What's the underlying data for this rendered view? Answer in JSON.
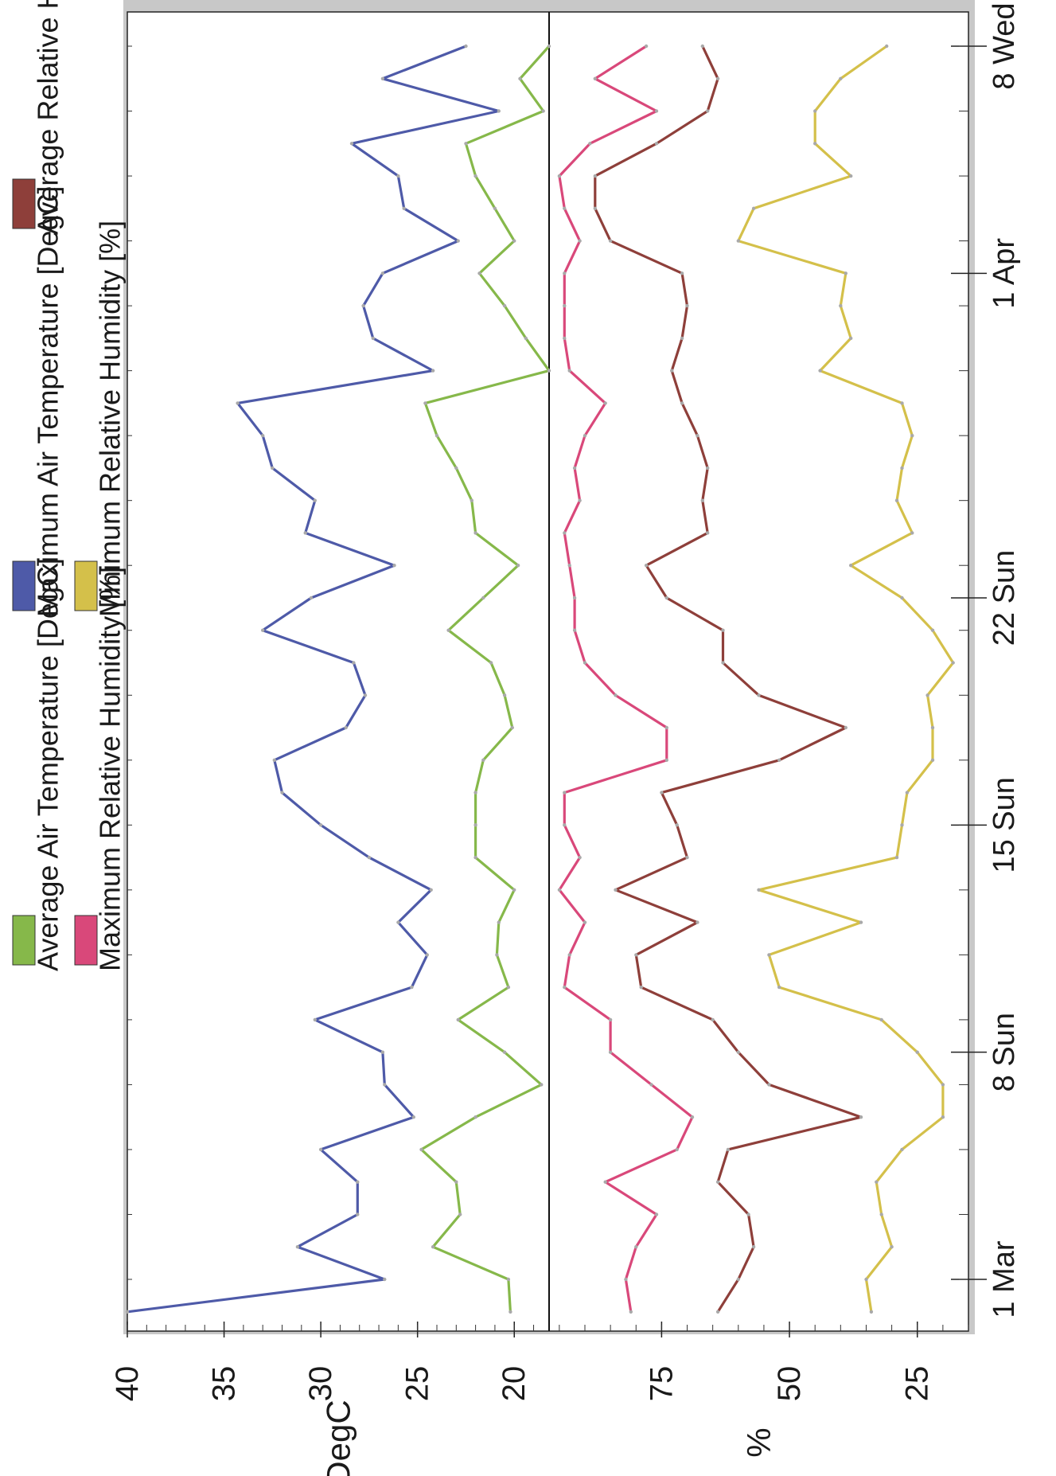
{
  "chart_data": {
    "type": "line",
    "orientation": "rotated-90",
    "legend": {
      "items": [
        {
          "label": "Average Air Temperature [DegC]",
          "color": "#86b84a"
        },
        {
          "label": "Maximum Air Temperature [DegC]",
          "color": "#4e5aa8"
        },
        {
          "label": "Average Relative Humidity [%]",
          "color": "#8e3f3a"
        },
        {
          "label": "Maximum Relative Humidity [%]",
          "color": "#d9487a"
        },
        {
          "label": "Minimum Relative Humidity [%]",
          "color": "#d4c04a"
        }
      ]
    },
    "x_axis": {
      "type": "date",
      "range": [
        "2015-02-27",
        "2015-04-09"
      ],
      "major_ticks": [
        {
          "date": "2015-03-01",
          "label": "1 Mar"
        },
        {
          "date": "2015-03-08",
          "label": "8 Sun"
        },
        {
          "date": "2015-03-15",
          "label": "15 Sun"
        },
        {
          "date": "2015-03-22",
          "label": "22 Sun"
        },
        {
          "date": "2015-04-01",
          "label": "1 Apr"
        },
        {
          "date": "2015-04-08",
          "label": "8 Wed"
        }
      ]
    },
    "panels": [
      {
        "name": "temperature",
        "ylabel": "DegC",
        "ylim": [
          18.2,
          40
        ],
        "ticks": [
          "40",
          "35",
          "30",
          "25",
          "20"
        ],
        "tick_values": [
          40,
          35,
          30,
          25,
          20
        ],
        "series": [
          {
            "name": "Maximum Air Temperature [DegC]",
            "color": "#4e5aa8",
            "x": [
              "2015-02-28",
              "2015-03-01",
              "2015-03-02",
              "2015-03-03",
              "2015-03-04",
              "2015-03-05",
              "2015-03-06",
              "2015-03-07",
              "2015-03-08",
              "2015-03-09",
              "2015-03-10",
              "2015-03-11",
              "2015-03-12",
              "2015-03-13",
              "2015-03-14",
              "2015-03-15",
              "2015-03-16",
              "2015-03-17",
              "2015-03-18",
              "2015-03-19",
              "2015-03-20",
              "2015-03-21",
              "2015-03-22",
              "2015-03-23",
              "2015-03-24",
              "2015-03-25",
              "2015-03-26",
              "2015-03-27",
              "2015-03-28",
              "2015-03-29",
              "2015-03-30",
              "2015-03-31",
              "2015-04-01",
              "2015-04-02",
              "2015-04-03",
              "2015-04-04",
              "2015-04-05",
              "2015-04-06",
              "2015-04-07",
              "2015-04-08"
            ],
            "y": [
              40,
              26.7,
              31.2,
              28.1,
              28.1,
              30.0,
              25.2,
              26.7,
              26.8,
              30.3,
              25.3,
              24.5,
              26.0,
              24.3,
              27.5,
              30.0,
              32.0,
              32.4,
              28.7,
              27.7,
              28.3,
              33.0,
              30.5,
              26.2,
              30.8,
              30.3,
              32.5,
              33.0,
              34.3,
              24.2,
              27.3,
              27.8,
              26.8,
              22.9,
              25.7,
              26.0,
              28.4,
              20.8,
              26.8,
              22.5
            ]
          },
          {
            "name": "Average Air Temperature [DegC]",
            "color": "#86b84a",
            "x": [
              "2015-02-28",
              "2015-03-01",
              "2015-03-02",
              "2015-03-03",
              "2015-03-04",
              "2015-03-05",
              "2015-03-06",
              "2015-03-07",
              "2015-03-08",
              "2015-03-09",
              "2015-03-10",
              "2015-03-11",
              "2015-03-12",
              "2015-03-13",
              "2015-03-14",
              "2015-03-15",
              "2015-03-16",
              "2015-03-17",
              "2015-03-18",
              "2015-03-19",
              "2015-03-20",
              "2015-03-21",
              "2015-03-22",
              "2015-03-23",
              "2015-03-24",
              "2015-03-25",
              "2015-03-26",
              "2015-03-27",
              "2015-03-28",
              "2015-03-29",
              "2015-03-30",
              "2015-03-31",
              "2015-04-01",
              "2015-04-02",
              "2015-04-03",
              "2015-04-04",
              "2015-04-05",
              "2015-04-06",
              "2015-04-07",
              "2015-04-08"
            ],
            "y": [
              20.2,
              20.3,
              24.2,
              22.8,
              23.0,
              24.8,
              22.0,
              18.6,
              20.5,
              22.9,
              20.3,
              20.9,
              20.8,
              20.0,
              22.0,
              22.0,
              22.0,
              21.6,
              20.1,
              20.5,
              21.2,
              23.4,
              21.6,
              19.8,
              22.0,
              22.2,
              23.0,
              24.0,
              24.6,
              18.2,
              19.4,
              20.5,
              21.8,
              20.0,
              21.0,
              22.0,
              22.5,
              18.5,
              19.7,
              18.2
            ]
          }
        ]
      },
      {
        "name": "humidity",
        "ylabel": "%",
        "ylim": [
          15,
          97
        ],
        "ticks": [
          "75",
          "50",
          "25"
        ],
        "tick_values": [
          75,
          50,
          25
        ],
        "series": [
          {
            "name": "Maximum Relative Humidity [%]",
            "color": "#d9487a",
            "x": [
              "2015-02-28",
              "2015-03-01",
              "2015-03-02",
              "2015-03-03",
              "2015-03-04",
              "2015-03-05",
              "2015-03-06",
              "2015-03-07",
              "2015-03-08",
              "2015-03-09",
              "2015-03-10",
              "2015-03-11",
              "2015-03-12",
              "2015-03-13",
              "2015-03-14",
              "2015-03-15",
              "2015-03-16",
              "2015-03-17",
              "2015-03-18",
              "2015-03-19",
              "2015-03-20",
              "2015-03-21",
              "2015-03-22",
              "2015-03-23",
              "2015-03-24",
              "2015-03-25",
              "2015-03-26",
              "2015-03-27",
              "2015-03-28",
              "2015-03-29",
              "2015-03-30",
              "2015-03-31",
              "2015-04-01",
              "2015-04-02",
              "2015-04-03",
              "2015-04-04",
              "2015-04-05",
              "2015-04-06",
              "2015-04-07",
              "2015-04-08"
            ],
            "y": [
              81,
              82,
              80,
              76,
              86,
              72,
              69,
              77,
              85,
              85,
              94,
              93,
              90,
              95,
              91,
              94,
              94,
              74,
              74,
              84,
              90,
              92,
              92,
              93,
              94,
              91,
              92,
              90,
              86,
              93,
              94,
              94,
              94,
              91,
              94,
              95,
              89,
              76,
              88,
              78
            ]
          },
          {
            "name": "Average Relative Humidity [%]",
            "color": "#8e3f3a",
            "x": [
              "2015-02-28",
              "2015-03-01",
              "2015-03-02",
              "2015-03-03",
              "2015-03-04",
              "2015-03-05",
              "2015-03-06",
              "2015-03-07",
              "2015-03-08",
              "2015-03-09",
              "2015-03-10",
              "2015-03-11",
              "2015-03-12",
              "2015-03-13",
              "2015-03-14",
              "2015-03-15",
              "2015-03-16",
              "2015-03-17",
              "2015-03-18",
              "2015-03-19",
              "2015-03-20",
              "2015-03-21",
              "2015-03-22",
              "2015-03-23",
              "2015-03-24",
              "2015-03-25",
              "2015-03-26",
              "2015-03-27",
              "2015-03-28",
              "2015-03-29",
              "2015-03-30",
              "2015-03-31",
              "2015-04-01",
              "2015-04-02",
              "2015-04-03",
              "2015-04-04",
              "2015-04-05",
              "2015-04-06",
              "2015-04-07",
              "2015-04-08"
            ],
            "y": [
              64,
              60,
              57,
              58,
              64,
              62,
              36,
              54,
              60,
              65,
              79,
              80,
              68,
              84,
              70,
              72,
              75,
              52,
              39,
              56,
              63,
              63,
              74,
              78,
              66,
              67,
              66,
              68,
              71,
              73,
              71,
              70,
              71,
              85,
              88,
              88,
              76,
              66,
              64,
              67
            ]
          },
          {
            "name": "Minimum Relative Humidity [%]",
            "color": "#d4c04a",
            "x": [
              "2015-02-28",
              "2015-03-01",
              "2015-03-02",
              "2015-03-03",
              "2015-03-04",
              "2015-03-05",
              "2015-03-06",
              "2015-03-07",
              "2015-03-08",
              "2015-03-09",
              "2015-03-10",
              "2015-03-11",
              "2015-03-12",
              "2015-03-13",
              "2015-03-14",
              "2015-03-15",
              "2015-03-16",
              "2015-03-17",
              "2015-03-18",
              "2015-03-19",
              "2015-03-20",
              "2015-03-21",
              "2015-03-22",
              "2015-03-23",
              "2015-03-24",
              "2015-03-25",
              "2015-03-26",
              "2015-03-27",
              "2015-03-28",
              "2015-03-29",
              "2015-03-30",
              "2015-03-31",
              "2015-04-01",
              "2015-04-02",
              "2015-04-03",
              "2015-04-04",
              "2015-04-05",
              "2015-04-06",
              "2015-04-07",
              "2015-04-08"
            ],
            "y": [
              34,
              35,
              30,
              32,
              33,
              28,
              20,
              20,
              25,
              32,
              52,
              54,
              36,
              56,
              29,
              28,
              27,
              22,
              22,
              23,
              18,
              22,
              28,
              38,
              26,
              29,
              28,
              26,
              28,
              44,
              38,
              40,
              39,
              60,
              57,
              38,
              45,
              45,
              40,
              31
            ]
          }
        ]
      }
    ]
  }
}
